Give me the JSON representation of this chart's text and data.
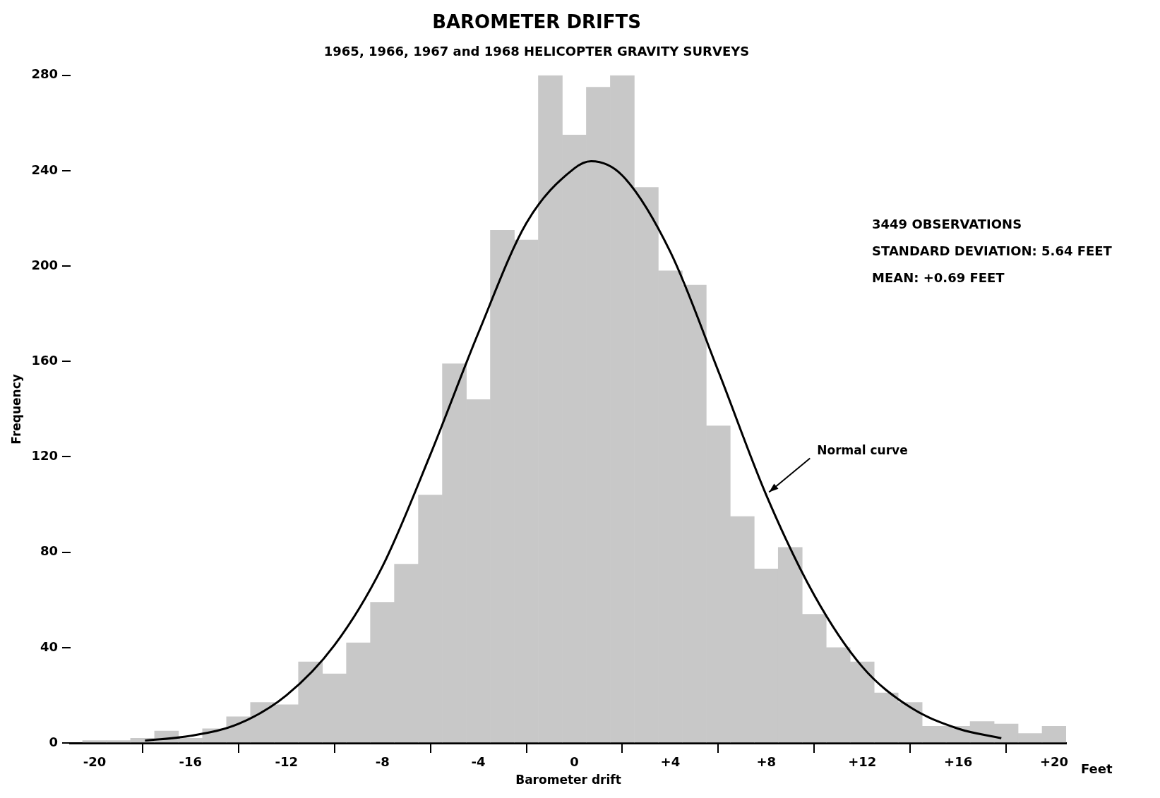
{
  "chart_data": {
    "type": "histogram",
    "title": "BAROMETER DRIFTS",
    "subtitle": "1965, 1966, 1967 and 1968 HELICOPTER GRAVITY SURVEYS",
    "xlabel": "Barometer drift",
    "ylabel": "Frequency",
    "bins": [
      -20.5,
      -19.5,
      -18.5,
      -17.5,
      -16.5,
      -15.5,
      -14.5,
      -13.5,
      -12.5,
      -11.5,
      -10.5,
      -9.5,
      -8.5,
      -7.5,
      -6.5,
      -5.5,
      -4.5,
      -3.5,
      -2.5,
      -1.5,
      -0.5,
      0.5,
      1.5,
      2.5,
      3.5,
      4.5,
      5.5,
      6.5,
      7.5,
      8.5,
      9.5,
      10.5,
      11.5,
      12.5,
      13.5,
      14.5,
      15.5,
      16.5,
      17.5,
      18.5,
      19.5,
      20.5
    ],
    "values": [
      1,
      1,
      2,
      5,
      2,
      6,
      11,
      17,
      16,
      34,
      29,
      42,
      59,
      75,
      104,
      159,
      144,
      215,
      211,
      280,
      255,
      275,
      280,
      233,
      198,
      192,
      133,
      95,
      73,
      82,
      54,
      40,
      34,
      21,
      17,
      7,
      7,
      9,
      8,
      4,
      7
    ],
    "color": "#c8c8c8",
    "series": [
      {
        "name": "Normal curve",
        "type": "line",
        "color": "#000000",
        "x": [
          -17.9,
          -16,
          -14,
          -12,
          -10,
          -8,
          -6,
          -4,
          -2,
          0,
          0.7,
          2,
          4,
          6,
          8,
          10,
          12,
          14,
          16,
          17.8
        ],
        "values": [
          1,
          3,
          8,
          20,
          41,
          74,
          121,
          172,
          218,
          241,
          244,
          238,
          206,
          156,
          104,
          62,
          32,
          15,
          6,
          2
        ]
      }
    ],
    "xlim": [
      -21,
      20.5
    ],
    "xticks": [
      -20,
      -16,
      -12,
      -8,
      -4,
      0,
      {
        "value": 4,
        "label": "+4"
      },
      {
        "value": 8,
        "label": "+8"
      },
      {
        "value": 12,
        "label": "+12"
      },
      {
        "value": 16,
        "label": "+16"
      },
      {
        "value": 20,
        "label": "+20"
      }
    ],
    "ylim": [
      0,
      280
    ],
    "yticks": [
      0,
      40,
      80,
      120,
      160,
      200,
      240,
      280
    ],
    "grid": false,
    "legend": false,
    "marker": "none",
    "line_style": "solid",
    "annotations": [
      "3449 OBSERVATIONS",
      "STANDARD DEVIATION: 5.64 FEET",
      "MEAN: +0.69 FEET",
      "Feet"
    ]
  }
}
